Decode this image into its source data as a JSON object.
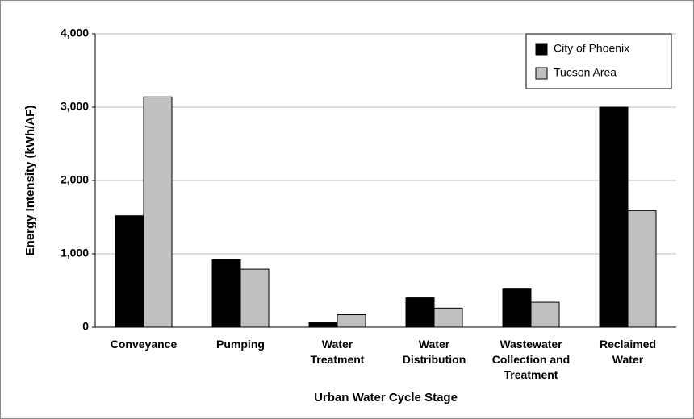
{
  "chart_data": {
    "type": "bar",
    "x_label": "Urban Water Cycle Stage",
    "y_label": "Energy Intensity (kWh/AF)",
    "categories": [
      [
        "Conveyance"
      ],
      [
        "Pumping"
      ],
      [
        "Water",
        "Treatment"
      ],
      [
        "Water",
        "Distribution"
      ],
      [
        "Wastewater",
        "Collection and",
        "Treatment"
      ],
      [
        "Reclaimed",
        "Water"
      ]
    ],
    "series": [
      {
        "name": "City of Phoenix",
        "color": "#000000",
        "values": [
          1520,
          920,
          60,
          400,
          520,
          3000
        ]
      },
      {
        "name": "Tucson Area",
        "color": "#c0c0c0",
        "values": [
          3140,
          790,
          170,
          260,
          340,
          1590
        ]
      }
    ],
    "ylim": [
      0,
      4000
    ],
    "yticks": [
      0,
      {
        "value": 1000,
        "label": "1,000"
      },
      {
        "value": 2000,
        "label": "2,000"
      },
      {
        "value": 3000,
        "label": "3,000"
      },
      {
        "value": 4000,
        "label": "4,000"
      }
    ],
    "grid": true,
    "legend": "top-right"
  }
}
